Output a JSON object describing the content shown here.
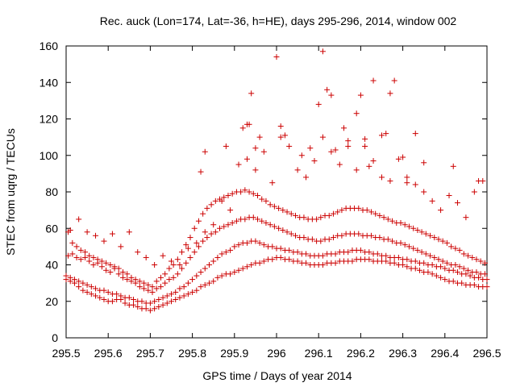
{
  "chart_data": {
    "type": "scatter",
    "title": "Rec. auck (Lon=174, Lat=-36, h=HE), days 295-296, 2014, window 002",
    "xlabel": "GPS time / Days of year 2014",
    "ylabel": "STEC from uqrg / TECUs",
    "xlim": [
      295.5,
      296.5
    ],
    "ylim": [
      0,
      160
    ],
    "xticks": [
      295.5,
      295.6,
      295.7,
      295.8,
      295.9,
      296,
      296.1,
      296.2,
      296.3,
      296.4,
      296.5
    ],
    "xtick_labels": [
      "295.5",
      "295.6",
      "295.7",
      "295.8",
      "295.9",
      "296",
      "296.1",
      "296.2",
      "296.3",
      "296.4",
      "296.5"
    ],
    "yticks": [
      0,
      20,
      40,
      60,
      80,
      100,
      120,
      140,
      160
    ],
    "ytick_labels": [
      "0",
      "20",
      "40",
      "60",
      "80",
      "100",
      "120",
      "140",
      "160"
    ],
    "marker": "+",
    "color": "#cc0000",
    "series": [
      {
        "name": "STEC",
        "x": [
          295.5,
          295.51,
          295.52,
          295.53,
          295.54,
          295.55,
          295.56,
          295.57,
          295.58,
          295.59,
          295.6,
          295.61,
          295.62,
          295.63,
          295.64,
          295.65,
          295.66,
          295.67,
          295.68,
          295.69,
          295.7,
          295.71,
          295.72,
          295.73,
          295.74,
          295.75,
          295.76,
          295.77,
          295.78,
          295.79,
          295.8,
          295.81,
          295.82,
          295.83,
          295.84,
          295.85,
          295.86,
          295.87,
          295.88,
          295.89,
          295.9,
          295.91,
          295.92,
          295.93,
          295.94,
          295.95,
          295.96,
          295.97,
          295.98,
          295.99,
          296,
          296.01,
          296.02,
          296.03,
          296.04,
          296.05,
          296.06,
          296.07,
          296.08,
          296.09,
          296.1,
          296.11,
          296.12,
          296.13,
          296.14,
          296.15,
          296.16,
          296.17,
          296.18,
          296.19,
          296.2,
          296.21,
          296.22,
          296.23,
          296.24,
          296.25,
          296.26,
          296.27,
          296.28,
          296.29,
          296.3,
          296.31,
          296.32,
          296.33,
          296.34,
          296.35,
          296.36,
          296.37,
          296.38,
          296.39,
          296.4,
          296.41,
          296.42,
          296.43,
          296.44,
          296.45,
          296.46,
          296.47,
          296.48,
          296.49,
          296.5,
          295.5,
          295.51,
          295.52,
          295.53,
          295.54,
          295.55,
          295.56,
          295.57,
          295.58,
          295.59,
          295.6,
          295.61,
          295.62,
          295.63,
          295.64,
          295.65,
          295.66,
          295.67,
          295.68,
          295.69,
          295.7,
          295.71,
          295.72,
          295.73,
          295.74,
          295.75,
          295.76,
          295.77,
          295.78,
          295.79,
          295.8,
          295.81,
          295.82,
          295.83,
          295.84,
          295.85,
          295.86,
          295.87,
          295.88,
          295.89,
          295.9,
          295.91,
          295.92,
          295.93,
          295.94,
          295.95,
          295.96,
          295.97,
          295.98,
          295.99,
          296,
          296.01,
          296.02,
          296.03,
          296.04,
          296.05,
          296.06,
          296.07,
          296.08,
          296.09,
          296.1,
          296.11,
          296.12,
          296.13,
          296.14,
          296.15,
          296.16,
          296.17,
          296.18,
          296.19,
          296.2,
          296.21,
          296.22,
          296.23,
          296.24,
          296.25,
          296.26,
          296.27,
          296.28,
          296.29,
          296.3,
          296.31,
          296.32,
          296.33,
          296.34,
          296.35,
          296.36,
          296.37,
          296.38,
          296.39,
          296.4,
          296.41,
          296.42,
          296.43,
          296.44,
          296.45,
          296.46,
          296.47,
          296.48,
          296.49,
          296.5,
          295.505,
          295.515,
          295.525,
          295.535,
          295.545,
          295.555,
          295.565,
          295.575,
          295.585,
          295.595,
          295.605,
          295.615,
          295.625,
          295.635,
          295.645,
          295.655,
          295.665,
          295.675,
          295.685,
          295.695,
          295.705,
          295.715,
          295.725,
          295.735,
          295.745,
          295.755,
          295.765,
          295.775,
          295.785,
          295.795,
          295.805,
          295.815,
          295.825,
          295.835,
          295.845,
          295.855,
          295.865,
          295.875,
          295.885,
          295.895,
          295.905,
          295.915,
          295.925,
          295.935,
          295.945,
          295.955,
          295.965,
          295.975,
          295.985,
          295.995,
          296.005,
          296.015,
          296.025,
          296.035,
          296.045,
          296.055,
          296.065,
          296.075,
          296.085,
          296.095,
          296.105,
          296.115,
          296.125,
          296.135,
          296.145,
          296.155,
          296.165,
          296.175,
          296.185,
          296.195,
          296.205,
          296.215,
          296.225,
          296.235,
          296.245,
          296.255,
          296.265,
          296.275,
          296.285,
          296.295,
          296.305,
          296.315,
          296.325,
          296.335,
          296.345,
          296.355,
          296.365,
          296.375,
          296.385,
          296.395,
          296.405,
          296.415,
          296.425,
          296.435,
          296.445,
          296.455,
          296.465,
          296.475,
          296.485,
          296.495,
          295.505,
          295.515,
          295.525,
          295.535,
          295.545,
          295.555,
          295.565,
          295.575,
          295.585,
          295.595,
          295.605,
          295.615,
          295.625,
          295.635,
          295.645,
          295.655,
          295.665,
          295.675,
          295.685,
          295.695,
          295.705,
          295.715,
          295.725,
          295.735,
          295.745,
          295.755,
          295.765,
          295.775,
          295.785,
          295.795,
          295.805,
          295.815,
          295.825,
          295.835,
          295.845,
          295.855,
          295.865,
          295.875,
          295.885,
          295.895,
          295.905,
          295.915,
          295.925,
          295.935,
          295.945,
          295.955,
          295.965,
          295.975,
          295.985,
          295.995,
          296.005,
          296.015,
          296.025,
          296.035,
          296.045,
          296.055,
          296.065,
          296.075,
          296.085,
          296.095,
          296.105,
          296.115,
          296.125,
          296.135,
          296.145,
          296.155,
          296.165,
          296.175,
          296.185,
          296.195,
          296.205,
          296.215,
          296.225,
          296.235,
          296.245,
          296.255,
          296.265,
          296.275,
          296.285,
          296.295,
          296.305,
          296.315,
          296.325,
          296.335,
          296.345,
          296.355,
          296.365,
          296.375,
          296.385,
          296.395,
          296.405,
          296.415,
          296.425,
          296.435,
          296.445,
          296.455,
          296.465,
          296.475,
          296.485,
          296.495,
          295.51,
          295.53,
          295.55,
          295.57,
          295.59,
          295.61,
          295.63,
          295.65,
          295.67,
          295.69,
          295.71,
          295.73,
          295.75,
          295.77,
          295.79,
          295.81,
          295.83,
          295.85,
          295.87,
          295.89,
          295.91,
          295.93,
          295.95,
          295.97,
          295.99,
          296.01,
          296.03,
          296.05,
          296.07,
          296.09,
          296.11,
          296.13,
          296.15,
          296.17,
          296.19,
          296.21,
          296.23,
          296.25,
          296.27,
          296.29,
          296.31,
          296.33,
          296.35,
          296.37,
          296.39,
          296.41,
          296.43,
          296.45,
          296.47,
          296.49,
          295.82,
          295.83,
          295.88,
          295.92,
          295.93,
          295.935,
          295.94,
          295.95,
          295.96,
          296.0,
          296.01,
          296.02,
          296.06,
          296.08,
          296.1,
          296.11,
          296.12,
          296.13,
          296.14,
          296.16,
          296.17,
          296.19,
          296.2,
          296.21,
          296.22,
          296.23,
          296.25,
          296.26,
          296.27,
          296.28,
          296.3,
          296.31,
          296.33,
          296.35,
          296.42,
          296.48
        ],
        "y": [
          32,
          31,
          30,
          28,
          26,
          25,
          24,
          23,
          22,
          21,
          20,
          20,
          21,
          21,
          19,
          18,
          18,
          17,
          16,
          16,
          15,
          16,
          17,
          18,
          19,
          20,
          21,
          22,
          23,
          24,
          25,
          26,
          28,
          29,
          30,
          31,
          33,
          34,
          35,
          35,
          36,
          37,
          38,
          39,
          40,
          41,
          41,
          42,
          43,
          43,
          44,
          44,
          43,
          43,
          42,
          42,
          41,
          41,
          40,
          40,
          40,
          40,
          41,
          41,
          41,
          42,
          42,
          42,
          42,
          43,
          43,
          43,
          43,
          42,
          42,
          42,
          42,
          41,
          41,
          40,
          40,
          39,
          38,
          38,
          37,
          36,
          36,
          35,
          34,
          33,
          32,
          31,
          31,
          30,
          30,
          29,
          29,
          29,
          28,
          28,
          28,
          34,
          33,
          32,
          31,
          30,
          29,
          28,
          27,
          26,
          26,
          25,
          24,
          24,
          23,
          22,
          22,
          21,
          20,
          20,
          19,
          19,
          20,
          21,
          22,
          23,
          24,
          25,
          27,
          28,
          30,
          32,
          34,
          36,
          38,
          40,
          42,
          44,
          46,
          47,
          48,
          50,
          51,
          52,
          52,
          53,
          53,
          52,
          51,
          50,
          50,
          49,
          49,
          48,
          48,
          47,
          47,
          46,
          46,
          45,
          45,
          45,
          45,
          46,
          46,
          46,
          47,
          47,
          47,
          48,
          48,
          48,
          47,
          47,
          46,
          46,
          45,
          45,
          44,
          44,
          44,
          43,
          43,
          42,
          42,
          41,
          41,
          40,
          40,
          39,
          39,
          38,
          37,
          37,
          36,
          35,
          35,
          34,
          33,
          33,
          32,
          32,
          45,
          46,
          44,
          43,
          44,
          42,
          40,
          41,
          39,
          37,
          36,
          38,
          35,
          33,
          32,
          31,
          30,
          28,
          27,
          26,
          25,
          27,
          28,
          30,
          32,
          33,
          35,
          38,
          41,
          44,
          47,
          50,
          53,
          55,
          57,
          58,
          60,
          61,
          62,
          63,
          64,
          65,
          65,
          66,
          66,
          65,
          64,
          63,
          62,
          61,
          60,
          59,
          58,
          57,
          56,
          55,
          55,
          54,
          54,
          53,
          53,
          54,
          54,
          55,
          56,
          56,
          57,
          57,
          57,
          57,
          56,
          56,
          56,
          55,
          55,
          54,
          54,
          53,
          52,
          52,
          51,
          50,
          49,
          48,
          47,
          46,
          45,
          44,
          43,
          42,
          41,
          40,
          40,
          39,
          38,
          37,
          36,
          36,
          35,
          35,
          58,
          52,
          50,
          48,
          47,
          45,
          44,
          43,
          42,
          41,
          40,
          39,
          38,
          36,
          35,
          33,
          32,
          31,
          30,
          29,
          28,
          31,
          33,
          35,
          38,
          40,
          43,
          47,
          51,
          55,
          60,
          64,
          68,
          71,
          73,
          75,
          76,
          77,
          78,
          79,
          80,
          80,
          81,
          80,
          79,
          78,
          76,
          75,
          73,
          72,
          71,
          70,
          69,
          68,
          67,
          66,
          66,
          65,
          65,
          65,
          66,
          67,
          67,
          68,
          69,
          70,
          71,
          71,
          71,
          71,
          70,
          70,
          69,
          68,
          67,
          66,
          65,
          64,
          63,
          63,
          62,
          61,
          60,
          59,
          58,
          57,
          56,
          55,
          54,
          53,
          52,
          50,
          49,
          48,
          46,
          45,
          44,
          43,
          42,
          41,
          59,
          65,
          58,
          56,
          53,
          57,
          50,
          58,
          47,
          44,
          40,
          45,
          42,
          40,
          49,
          52,
          58,
          62,
          75,
          70,
          95,
          98,
          92,
          102,
          85,
          110,
          105,
          92,
          88,
          97,
          110,
          102,
          95,
          108,
          92,
          105,
          97,
          88,
          86,
          98,
          85,
          84,
          80,
          75,
          70,
          78,
          74,
          66,
          80,
          86,
          91,
          102,
          105,
          115,
          117,
          117,
          134,
          104,
          110,
          154,
          116,
          111,
          100,
          104,
          128,
          157,
          136,
          133,
          103,
          115,
          105,
          123,
          133,
          109,
          94,
          141,
          111,
          112,
          134,
          141,
          99,
          88,
          112,
          96,
          94,
          86
        ]
      }
    ]
  }
}
